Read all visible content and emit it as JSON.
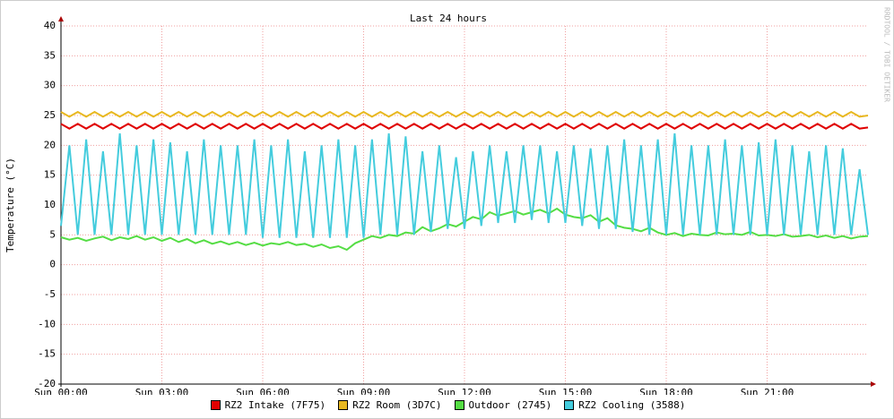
{
  "chart_data": {
    "type": "line",
    "title": "Last 24 hours",
    "y_label": "Temperature (°C)",
    "watermark": "RRDTOOL / TOBI OETIKER",
    "x": [
      0,
      0.25,
      0.5,
      0.75,
      1,
      1.25,
      1.5,
      1.75,
      2,
      2.25,
      2.5,
      2.75,
      3,
      3.25,
      3.5,
      3.75,
      4,
      4.25,
      4.5,
      4.75,
      5,
      5.25,
      5.5,
      5.75,
      6,
      6.25,
      6.5,
      6.75,
      7,
      7.25,
      7.5,
      7.75,
      8,
      8.25,
      8.5,
      8.75,
      9,
      9.25,
      9.5,
      9.75,
      10,
      10.25,
      10.5,
      10.75,
      11,
      11.25,
      11.5,
      11.75,
      12,
      12.25,
      12.5,
      12.75,
      13,
      13.25,
      13.5,
      13.75,
      14,
      14.25,
      14.5,
      14.75,
      15,
      15.25,
      15.5,
      15.75,
      16,
      16.25,
      16.5,
      16.75,
      17,
      17.25,
      17.5,
      17.75,
      18,
      18.25,
      18.5,
      18.75,
      19,
      19.25,
      19.5,
      19.75,
      20,
      20.25,
      20.5,
      20.75,
      21,
      21.25,
      21.5,
      21.75,
      22,
      22.25,
      22.5,
      22.75,
      23,
      23.25,
      23.5,
      23.75,
      24
    ],
    "xlim": [
      0,
      24
    ],
    "xticks": [
      {
        "value": 0,
        "label": "Sun 00:00"
      },
      {
        "value": 3,
        "label": "Sun 03:00"
      },
      {
        "value": 6,
        "label": "Sun 06:00"
      },
      {
        "value": 9,
        "label": "Sun 09:00"
      },
      {
        "value": 12,
        "label": "Sun 12:00"
      },
      {
        "value": 15,
        "label": "Sun 15:00"
      },
      {
        "value": 18,
        "label": "Sun 18:00"
      },
      {
        "value": 21,
        "label": "Sun 21:00"
      }
    ],
    "ylim": [
      -20,
      40
    ],
    "yticks": [
      -20,
      -15,
      -10,
      -5,
      0,
      5,
      10,
      15,
      20,
      25,
      30,
      35,
      40
    ],
    "grid": true,
    "series": [
      {
        "name": "RZ2 Intake (7F75)",
        "color": "#e00000",
        "values": [
          23.6,
          22.8,
          23.6,
          22.8,
          23.6,
          22.8,
          23.6,
          22.8,
          23.6,
          22.8,
          23.6,
          22.8,
          23.6,
          22.8,
          23.6,
          22.8,
          23.6,
          22.8,
          23.6,
          22.8,
          23.6,
          22.8,
          23.6,
          22.8,
          23.6,
          22.8,
          23.6,
          22.8,
          23.6,
          22.8,
          23.6,
          22.8,
          23.6,
          22.8,
          23.6,
          22.8,
          23.6,
          22.8,
          23.6,
          22.8,
          23.6,
          22.8,
          23.6,
          22.8,
          23.6,
          22.8,
          23.6,
          22.8,
          23.6,
          22.8,
          23.6,
          22.8,
          23.6,
          22.8,
          23.6,
          22.8,
          23.6,
          22.8,
          23.6,
          22.8,
          23.6,
          22.8,
          23.6,
          22.8,
          23.6,
          22.8,
          23.6,
          22.8,
          23.6,
          22.8,
          23.6,
          22.8,
          23.6,
          22.8,
          23.6,
          22.8,
          23.6,
          22.8,
          23.6,
          22.8,
          23.6,
          22.8,
          23.6,
          22.8,
          23.6,
          22.8,
          23.6,
          22.8,
          23.6,
          22.8,
          23.6,
          22.8,
          23.6,
          22.8,
          23.6,
          22.8,
          23.0
        ]
      },
      {
        "name": "RZ2 Room (3D7C)",
        "color": "#e8b820",
        "values": [
          25.6,
          24.8,
          25.6,
          24.8,
          25.6,
          24.8,
          25.6,
          24.8,
          25.6,
          24.8,
          25.6,
          24.8,
          25.6,
          24.8,
          25.6,
          24.8,
          25.6,
          24.8,
          25.6,
          24.8,
          25.6,
          24.8,
          25.6,
          24.8,
          25.6,
          24.8,
          25.6,
          24.8,
          25.6,
          24.8,
          25.6,
          24.8,
          25.6,
          24.8,
          25.6,
          24.8,
          25.6,
          24.8,
          25.6,
          24.8,
          25.6,
          24.8,
          25.6,
          24.8,
          25.6,
          24.8,
          25.6,
          24.8,
          25.6,
          24.8,
          25.6,
          24.8,
          25.6,
          24.8,
          25.6,
          24.8,
          25.6,
          24.8,
          25.6,
          24.8,
          25.6,
          24.8,
          25.6,
          24.8,
          25.6,
          24.8,
          25.6,
          24.8,
          25.6,
          24.8,
          25.6,
          24.8,
          25.6,
          24.8,
          25.6,
          24.8,
          25.6,
          24.8,
          25.6,
          24.8,
          25.6,
          24.8,
          25.6,
          24.8,
          25.6,
          24.8,
          25.6,
          24.8,
          25.6,
          24.8,
          25.6,
          24.8,
          25.6,
          24.8,
          25.6,
          24.8,
          25.0
        ]
      },
      {
        "name": "Outdoor (2745)",
        "color": "#55dd44",
        "values": [
          4.6,
          4.2,
          4.5,
          4.0,
          4.4,
          4.7,
          4.1,
          4.6,
          4.3,
          4.8,
          4.2,
          4.6,
          4.0,
          4.5,
          3.8,
          4.3,
          3.6,
          4.1,
          3.5,
          3.9,
          3.4,
          3.8,
          3.3,
          3.7,
          3.2,
          3.6,
          3.4,
          3.8,
          3.3,
          3.5,
          3.0,
          3.4,
          2.8,
          3.1,
          2.5,
          3.6,
          4.2,
          4.8,
          4.5,
          5.0,
          4.8,
          5.4,
          5.2,
          6.3,
          5.6,
          6.1,
          6.8,
          6.4,
          7.2,
          8.0,
          7.6,
          8.8,
          8.2,
          8.6,
          9.0,
          8.4,
          8.8,
          9.2,
          8.6,
          9.4,
          8.4,
          8.0,
          7.8,
          8.3,
          7.2,
          7.8,
          6.6,
          6.2,
          6.0,
          5.6,
          6.2,
          5.4,
          5.0,
          5.3,
          4.8,
          5.2,
          5.0,
          4.9,
          5.4,
          5.1,
          5.2,
          5.0,
          5.5,
          4.9,
          5.0,
          4.8,
          5.1,
          4.7,
          4.8,
          5.0,
          4.6,
          4.9,
          4.5,
          4.8,
          4.4,
          4.7,
          4.8
        ]
      },
      {
        "name": "RZ2 Cooling (3588)",
        "color": "#44ccdd",
        "values": [
          6.5,
          20,
          5,
          21,
          5,
          19,
          5,
          22,
          5,
          20,
          5,
          21,
          5,
          20.5,
          5,
          19,
          5,
          21,
          5,
          20,
          5,
          20,
          5,
          21,
          4.5,
          20,
          4.5,
          21,
          4.5,
          19,
          4.5,
          20,
          4.5,
          21,
          4.5,
          20,
          4.5,
          21,
          5,
          22,
          5,
          21.5,
          5,
          19,
          5.5,
          20,
          6,
          18,
          6,
          19,
          6.5,
          20,
          7,
          19,
          7,
          20,
          7.5,
          20,
          7,
          19,
          7,
          20,
          6.5,
          19.5,
          6,
          20,
          6,
          21,
          5.5,
          20,
          5,
          21,
          5,
          22,
          5,
          20,
          5,
          20,
          5,
          21,
          5,
          20,
          5,
          20.5,
          5,
          21,
          5,
          20,
          5,
          19,
          5,
          20,
          5,
          19.5,
          5,
          16,
          5
        ]
      }
    ]
  }
}
